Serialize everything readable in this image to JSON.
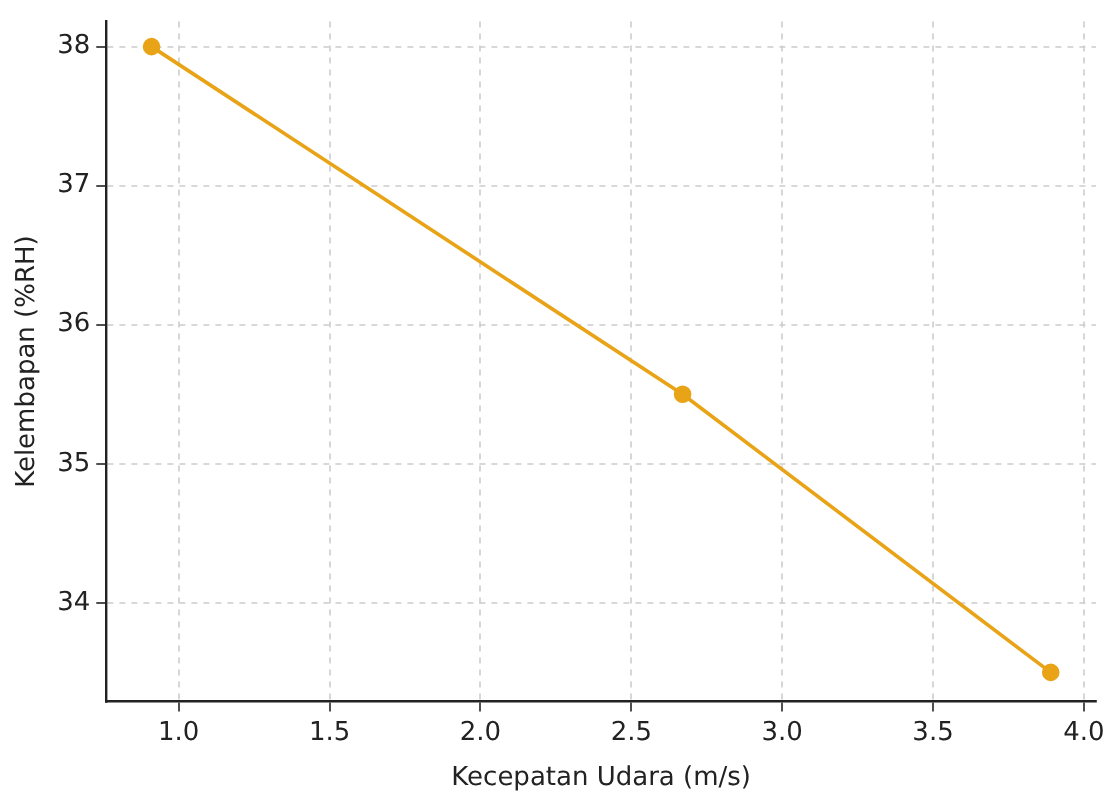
{
  "chart_data": {
    "type": "line",
    "xlabel": "Kecepatan Udara (m/s)",
    "ylabel": "Kelembapan (%RH)",
    "x": [
      0.91,
      2.67,
      3.89
    ],
    "series": [
      {
        "color": "#e8a317",
        "values": [
          38,
          35.5,
          33.5
        ]
      }
    ],
    "xlim": [
      0.76,
      4.04
    ],
    "xticks": [
      {
        "value": 1,
        "label": "1.0"
      },
      {
        "value": 1.5,
        "label": "1.5"
      },
      {
        "value": 2,
        "label": "2.0"
      },
      {
        "value": 2.5,
        "label": "2.5"
      },
      {
        "value": 3,
        "label": "3.0"
      },
      {
        "value": 3.5,
        "label": "3.5"
      },
      {
        "value": 4,
        "label": "4.0"
      }
    ],
    "ylim": [
      33.29,
      38.18
    ],
    "yticks": [
      34,
      35,
      36,
      37,
      38
    ],
    "grid": true,
    "marker": "circle",
    "line_style": "solid",
    "legend": false
  }
}
